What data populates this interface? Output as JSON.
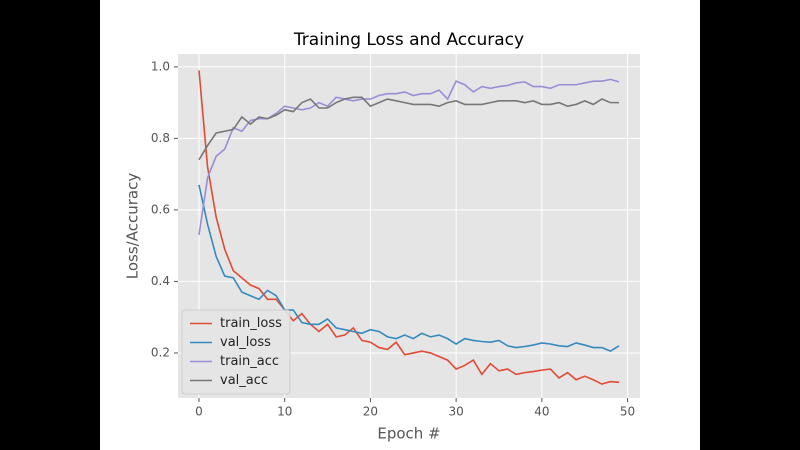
{
  "chart_data": {
    "type": "line",
    "title": "Training Loss and Accuracy",
    "xlabel": "Epoch #",
    "ylabel": "Loss/Accuracy",
    "x": [
      0,
      1,
      2,
      3,
      4,
      5,
      6,
      7,
      8,
      9,
      10,
      11,
      12,
      13,
      14,
      15,
      16,
      17,
      18,
      19,
      20,
      21,
      22,
      23,
      24,
      25,
      26,
      27,
      28,
      29,
      30,
      31,
      32,
      33,
      34,
      35,
      36,
      37,
      38,
      39,
      40,
      41,
      42,
      43,
      44,
      45,
      46,
      47,
      48,
      49
    ],
    "series": [
      {
        "name": "train_loss",
        "color": "#E24A33",
        "values": [
          0.99,
          0.72,
          0.58,
          0.49,
          0.43,
          0.41,
          0.39,
          0.38,
          0.35,
          0.35,
          0.32,
          0.29,
          0.31,
          0.28,
          0.26,
          0.28,
          0.245,
          0.25,
          0.27,
          0.235,
          0.23,
          0.215,
          0.21,
          0.23,
          0.195,
          0.2,
          0.205,
          0.2,
          0.19,
          0.18,
          0.155,
          0.165,
          0.18,
          0.14,
          0.17,
          0.15,
          0.155,
          0.14,
          0.145,
          0.148,
          0.152,
          0.155,
          0.13,
          0.145,
          0.125,
          0.135,
          0.125,
          0.113,
          0.12,
          0.118
        ]
      },
      {
        "name": "val_loss",
        "color": "#348ABD",
        "values": [
          0.67,
          0.56,
          0.47,
          0.415,
          0.41,
          0.37,
          0.36,
          0.35,
          0.375,
          0.36,
          0.32,
          0.32,
          0.285,
          0.28,
          0.28,
          0.295,
          0.27,
          0.265,
          0.26,
          0.255,
          0.265,
          0.26,
          0.245,
          0.24,
          0.25,
          0.24,
          0.255,
          0.245,
          0.25,
          0.24,
          0.225,
          0.24,
          0.235,
          0.232,
          0.23,
          0.235,
          0.22,
          0.215,
          0.218,
          0.222,
          0.228,
          0.225,
          0.22,
          0.218,
          0.228,
          0.222,
          0.215,
          0.215,
          0.205,
          0.22
        ]
      },
      {
        "name": "train_acc",
        "color": "#988ED5",
        "values": [
          0.53,
          0.69,
          0.75,
          0.77,
          0.83,
          0.82,
          0.85,
          0.855,
          0.855,
          0.87,
          0.89,
          0.885,
          0.88,
          0.885,
          0.9,
          0.89,
          0.915,
          0.91,
          0.905,
          0.91,
          0.91,
          0.92,
          0.925,
          0.925,
          0.93,
          0.92,
          0.925,
          0.925,
          0.935,
          0.91,
          0.96,
          0.95,
          0.93,
          0.945,
          0.94,
          0.945,
          0.948,
          0.955,
          0.958,
          0.945,
          0.945,
          0.94,
          0.95,
          0.95,
          0.95,
          0.955,
          0.96,
          0.96,
          0.965,
          0.958
        ]
      },
      {
        "name": "val_acc",
        "color": "#777777",
        "values": [
          0.74,
          0.78,
          0.815,
          0.82,
          0.825,
          0.86,
          0.84,
          0.86,
          0.855,
          0.865,
          0.88,
          0.875,
          0.9,
          0.91,
          0.885,
          0.885,
          0.9,
          0.91,
          0.915,
          0.915,
          0.89,
          0.9,
          0.91,
          0.905,
          0.9,
          0.895,
          0.895,
          0.895,
          0.89,
          0.9,
          0.905,
          0.895,
          0.895,
          0.895,
          0.9,
          0.905,
          0.905,
          0.905,
          0.9,
          0.905,
          0.895,
          0.895,
          0.9,
          0.89,
          0.895,
          0.905,
          0.895,
          0.91,
          0.9,
          0.9
        ]
      }
    ],
    "xlim": [
      -2.45,
      51.45
    ],
    "xticks": [
      0,
      10,
      20,
      30,
      40,
      50
    ],
    "ylim": [
      0.074,
      1.036
    ],
    "yticks": [
      0.2,
      0.4,
      0.6,
      0.8,
      {
        "value": 1.0,
        "label": "1.0"
      }
    ],
    "grid": true,
    "legend": "lower left"
  }
}
